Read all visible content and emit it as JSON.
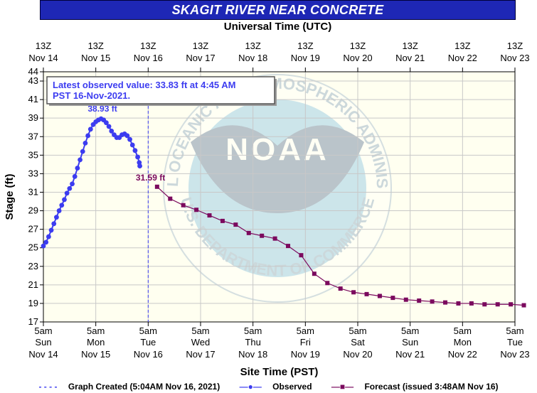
{
  "chart_data": {
    "type": "line",
    "title": "SKAGIT RIVER NEAR CONCRETE",
    "top_axis_label": "Universal Time (UTC)",
    "xlabel": "Site Time (PST)",
    "ylabel": "Stage (ft)",
    "ylim": [
      17,
      44
    ],
    "yticks": [
      17,
      19,
      21,
      23,
      25,
      27,
      29,
      31,
      33,
      35,
      37,
      39,
      41,
      43,
      44
    ],
    "top_ticks": [
      {
        "hour": "13Z",
        "date": "Nov 14"
      },
      {
        "hour": "13Z",
        "date": "Nov 15"
      },
      {
        "hour": "13Z",
        "date": "Nov 16"
      },
      {
        "hour": "13Z",
        "date": "Nov 17"
      },
      {
        "hour": "13Z",
        "date": "Nov 18"
      },
      {
        "hour": "13Z",
        "date": "Nov 19"
      },
      {
        "hour": "13Z",
        "date": "Nov 20"
      },
      {
        "hour": "13Z",
        "date": "Nov 21"
      },
      {
        "hour": "13Z",
        "date": "Nov 22"
      },
      {
        "hour": "13Z",
        "date": "Nov 23"
      }
    ],
    "bottom_ticks": [
      {
        "time": "5am",
        "day": "Sun",
        "date": "Nov 14"
      },
      {
        "time": "5am",
        "day": "Mon",
        "date": "Nov 15"
      },
      {
        "time": "5am",
        "day": "Tue",
        "date": "Nov 16"
      },
      {
        "time": "5am",
        "day": "Wed",
        "date": "Nov 17"
      },
      {
        "time": "5am",
        "day": "Thu",
        "date": "Nov 18"
      },
      {
        "time": "5am",
        "day": "Fri",
        "date": "Nov 19"
      },
      {
        "time": "5am",
        "day": "Sat",
        "date": "Nov 20"
      },
      {
        "time": "5am",
        "day": "Sun",
        "date": "Nov 21"
      },
      {
        "time": "5am",
        "day": "Mon",
        "date": "Nov 22"
      },
      {
        "time": "5am",
        "day": "Tue",
        "date": "Nov 23"
      }
    ],
    "x_unit": "days after 5am Sun Nov 14 (PST)",
    "series": [
      {
        "name": "Observed",
        "color": "#3c3cf0",
        "points": [
          [
            0.0,
            25.2
          ],
          [
            0.05,
            25.6
          ],
          [
            0.1,
            26.2
          ],
          [
            0.15,
            26.9
          ],
          [
            0.2,
            27.6
          ],
          [
            0.25,
            28.3
          ],
          [
            0.3,
            29.0
          ],
          [
            0.35,
            29.6
          ],
          [
            0.4,
            30.2
          ],
          [
            0.45,
            30.9
          ],
          [
            0.5,
            31.4
          ],
          [
            0.55,
            31.9
          ],
          [
            0.6,
            32.7
          ],
          [
            0.65,
            33.6
          ],
          [
            0.7,
            34.5
          ],
          [
            0.75,
            35.4
          ],
          [
            0.8,
            36.3
          ],
          [
            0.85,
            37.1
          ],
          [
            0.9,
            37.8
          ],
          [
            0.95,
            38.3
          ],
          [
            1.0,
            38.6
          ],
          [
            1.05,
            38.8
          ],
          [
            1.1,
            38.93
          ],
          [
            1.15,
            38.8
          ],
          [
            1.2,
            38.5
          ],
          [
            1.25,
            38.1
          ],
          [
            1.3,
            37.6
          ],
          [
            1.35,
            37.2
          ],
          [
            1.4,
            36.9
          ],
          [
            1.45,
            36.9
          ],
          [
            1.5,
            37.2
          ],
          [
            1.55,
            37.3
          ],
          [
            1.6,
            37.1
          ],
          [
            1.65,
            36.7
          ],
          [
            1.7,
            36.1
          ],
          [
            1.75,
            35.5
          ],
          [
            1.8,
            34.8
          ],
          [
            1.83,
            34.2
          ],
          [
            1.84,
            33.83
          ]
        ]
      },
      {
        "name": "Forecast (issued 3:48AM Nov 16)",
        "color": "#7b0a5e",
        "points": [
          [
            2.17,
            31.59
          ],
          [
            2.42,
            30.3
          ],
          [
            2.67,
            29.6
          ],
          [
            2.92,
            29.1
          ],
          [
            3.17,
            28.5
          ],
          [
            3.42,
            27.9
          ],
          [
            3.67,
            27.5
          ],
          [
            3.92,
            26.6
          ],
          [
            4.17,
            26.3
          ],
          [
            4.42,
            26.0
          ],
          [
            4.67,
            25.2
          ],
          [
            4.92,
            24.2
          ],
          [
            5.17,
            22.2
          ],
          [
            5.42,
            21.2
          ],
          [
            5.67,
            20.6
          ],
          [
            5.92,
            20.2
          ],
          [
            6.17,
            20.0
          ],
          [
            6.42,
            19.8
          ],
          [
            6.67,
            19.6
          ],
          [
            6.92,
            19.4
          ],
          [
            7.17,
            19.3
          ],
          [
            7.42,
            19.2
          ],
          [
            7.67,
            19.1
          ],
          [
            7.92,
            19.0
          ],
          [
            8.17,
            19.0
          ],
          [
            8.42,
            18.9
          ],
          [
            8.67,
            18.9
          ],
          [
            8.92,
            18.9
          ],
          [
            9.17,
            18.8
          ]
        ]
      }
    ],
    "annotations": {
      "peak_label": "38.93 ft",
      "forecast_start_label": "31.59 ft",
      "latest_observed": "Latest observed value: 33.83 ft at 4:45 AM PST 16-Nov-2021."
    },
    "graph_created_x": 2.0,
    "grid": true
  },
  "legend": {
    "graph_created": "Graph Created (5:04AM Nov 16, 2021)",
    "observed": "Observed",
    "forecast": "Forecast (issued 3:48AM Nov 16)"
  },
  "watermark": {
    "text_top": "NATIONAL OCEANIC AND ATMOSPHERIC ADMINISTRATION",
    "text_bottom": "U.S. DEPARTMENT OF COMMERCE",
    "center": "NOAA"
  }
}
